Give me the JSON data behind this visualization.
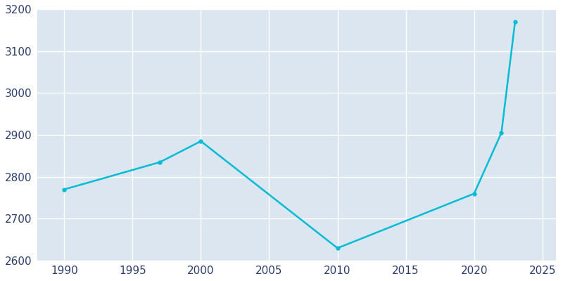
{
  "years": [
    1990,
    1997,
    2000,
    2010,
    2020,
    2022,
    2023
  ],
  "population": [
    2770,
    2835,
    2885,
    2630,
    2760,
    2905,
    3170
  ],
  "line_color": "#00BCD4",
  "marker": "o",
  "marker_size": 3.5,
  "linewidth": 1.8,
  "xlim": [
    1988,
    2026
  ],
  "ylim": [
    2600,
    3200
  ],
  "xticks": [
    1990,
    1995,
    2000,
    2005,
    2010,
    2015,
    2020,
    2025
  ],
  "yticks": [
    2600,
    2700,
    2800,
    2900,
    3000,
    3100,
    3200
  ],
  "plot_bg_color": "#dce6f0",
  "fig_bg_color": "#ffffff",
  "grid_color": "#ffffff",
  "tick_label_color": "#2c3e6b",
  "tick_fontsize": 11,
  "spine_color": "#aaaaaa"
}
